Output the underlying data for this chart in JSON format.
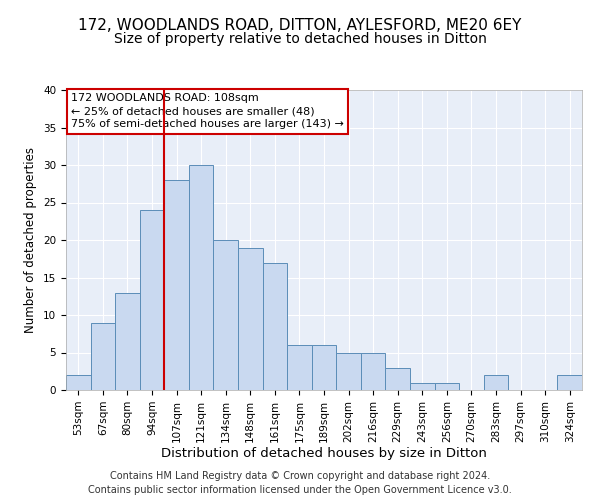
{
  "title": "172, WOODLANDS ROAD, DITTON, AYLESFORD, ME20 6EY",
  "subtitle": "Size of property relative to detached houses in Ditton",
  "xlabel": "Distribution of detached houses by size in Ditton",
  "ylabel": "Number of detached properties",
  "categories": [
    "53sqm",
    "67sqm",
    "80sqm",
    "94sqm",
    "107sqm",
    "121sqm",
    "134sqm",
    "148sqm",
    "161sqm",
    "175sqm",
    "189sqm",
    "202sqm",
    "216sqm",
    "229sqm",
    "243sqm",
    "256sqm",
    "270sqm",
    "283sqm",
    "297sqm",
    "310sqm",
    "324sqm"
  ],
  "values": [
    2,
    9,
    13,
    24,
    28,
    30,
    20,
    19,
    17,
    6,
    6,
    5,
    5,
    3,
    1,
    1,
    0,
    2,
    0,
    0,
    2
  ],
  "bar_color": "#c9d9f0",
  "bar_edge_color": "#5b8db8",
  "vline_x_index": 4,
  "vline_color": "#cc0000",
  "annotation_text": "172 WOODLANDS ROAD: 108sqm\n← 25% of detached houses are smaller (48)\n75% of semi-detached houses are larger (143) →",
  "annotation_box_color": "#ffffff",
  "annotation_box_edge_color": "#cc0000",
  "ylim": [
    0,
    40
  ],
  "yticks": [
    0,
    5,
    10,
    15,
    20,
    25,
    30,
    35,
    40
  ],
  "footer_line1": "Contains HM Land Registry data © Crown copyright and database right 2024.",
  "footer_line2": "Contains public sector information licensed under the Open Government Licence v3.0.",
  "background_color": "#e8eef8",
  "grid_color": "#ffffff",
  "title_fontsize": 11,
  "subtitle_fontsize": 10,
  "xlabel_fontsize": 9.5,
  "ylabel_fontsize": 8.5,
  "tick_fontsize": 7.5,
  "annotation_fontsize": 8,
  "footer_fontsize": 7
}
